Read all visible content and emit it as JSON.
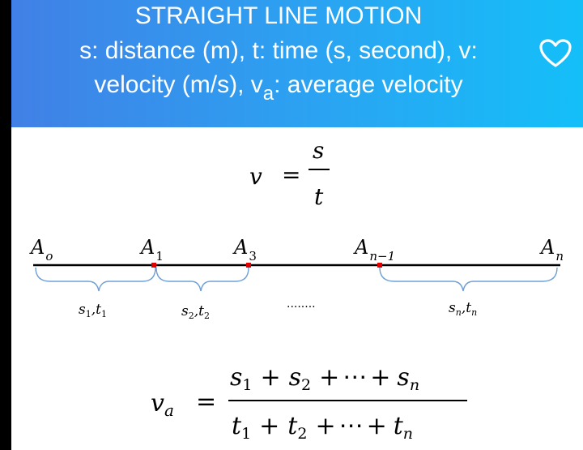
{
  "header": {
    "line1": "STRAIGHT LINE MOTION",
    "line2": "s: distance (m), t: time (s, second), v:",
    "line3_main": "velocity (m/s), v",
    "line3_sub": "a",
    "line3_rest": ": average velocity",
    "favorite_icon": "heart-outline-icon"
  },
  "formula1": {
    "lhs": "v",
    "eq": "=",
    "numerator": "s",
    "denominator": "t"
  },
  "points": {
    "a0": {
      "base": "A",
      "sub": "o"
    },
    "a1": {
      "base": "A",
      "sub": "1"
    },
    "a3": {
      "base": "A",
      "sub": "3"
    },
    "an1": {
      "base": "A",
      "sub": "n−1"
    },
    "an": {
      "base": "A",
      "sub": "n"
    }
  },
  "segments": {
    "seg1": {
      "s": "s",
      "s_sub": "1",
      "sep": ",",
      "t": "t",
      "t_sub": "1"
    },
    "seg2": {
      "s": "s",
      "s_sub": "2",
      "sep": ",",
      "t": "t",
      "t_sub": "2"
    },
    "ellipsis": "........",
    "segn": {
      "s": "s",
      "s_sub": "n",
      "sep": ",",
      "t": "t",
      "t_sub": "n"
    }
  },
  "formula2": {
    "lhs": "v",
    "lhs_sub": "a",
    "eq": "=",
    "num": {
      "t1": "s",
      "t1_sub": "1",
      "op1": "+",
      "t2": "s",
      "t2_sub": "2",
      "op2": "+",
      "dots": "⋯",
      "op3": "+",
      "t3": "s",
      "t3_sub": "n"
    },
    "den": {
      "t1": "t",
      "t1_sub": "1",
      "op1": "+",
      "t2": "t",
      "t2_sub": "2",
      "op2": "+",
      "dots": "⋯",
      "op3": "+",
      "t3": "t",
      "t3_sub": "n"
    }
  },
  "colors": {
    "brace": "#6e9fd6",
    "marker": "#e00000",
    "line": "#000000"
  }
}
